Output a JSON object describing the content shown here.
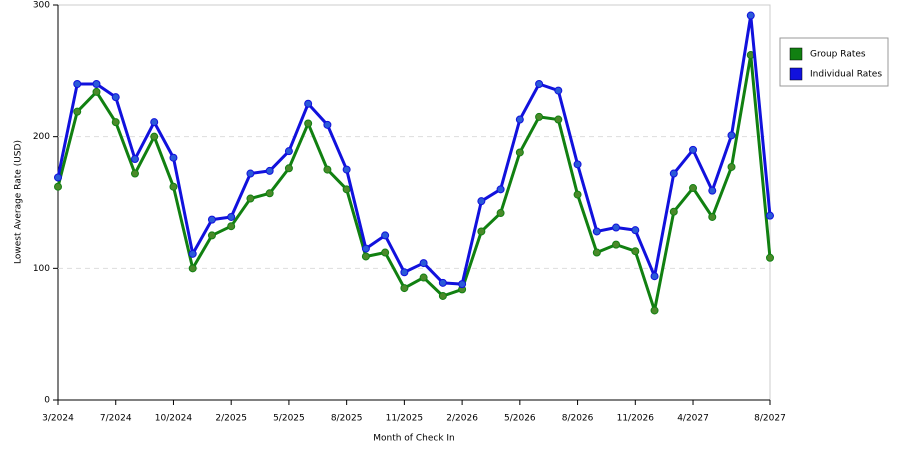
{
  "chart_data": {
    "type": "line",
    "x_label": "Month of Check In",
    "y_label": "Lowest Average Rate (USD)",
    "categories": [
      "3/2024",
      null,
      null,
      "7/2024",
      null,
      null,
      "10/2024",
      null,
      null,
      "2/2025",
      null,
      null,
      "5/2025",
      null,
      null,
      "8/2025",
      null,
      null,
      "11/2025",
      null,
      null,
      "2/2026",
      null,
      null,
      "5/2026",
      null,
      null,
      "8/2026",
      null,
      null,
      "11/2026",
      null,
      null,
      "4/2027",
      null,
      null,
      null,
      "8/2027"
    ],
    "series": [
      {
        "name": "Group Rates",
        "color": "#118011",
        "marker_color": "#4a8a2a",
        "values": [
          162,
          219,
          234,
          211,
          172,
          200,
          162,
          100,
          125,
          132,
          153,
          157,
          176,
          210,
          175,
          160,
          109,
          112,
          85,
          93,
          79,
          84,
          128,
          142,
          188,
          215,
          213,
          156,
          112,
          118,
          113,
          68,
          143,
          161,
          139,
          177,
          262,
          108
        ]
      },
      {
        "name": "Individual Rates",
        "color": "#1111dd",
        "marker_color": "#2a5ad8",
        "values": [
          169,
          240,
          240,
          230,
          183,
          211,
          184,
          111,
          137,
          139,
          172,
          174,
          189,
          225,
          209,
          175,
          115,
          125,
          97,
          104,
          89,
          88,
          151,
          160,
          213,
          240,
          235,
          179,
          128,
          131,
          129,
          94,
          172,
          190,
          159,
          201,
          292,
          140
        ]
      }
    ],
    "ylim": [
      0,
      300
    ],
    "yticks": [
      0,
      100,
      200,
      300
    ],
    "grid": true,
    "legend": "right"
  }
}
